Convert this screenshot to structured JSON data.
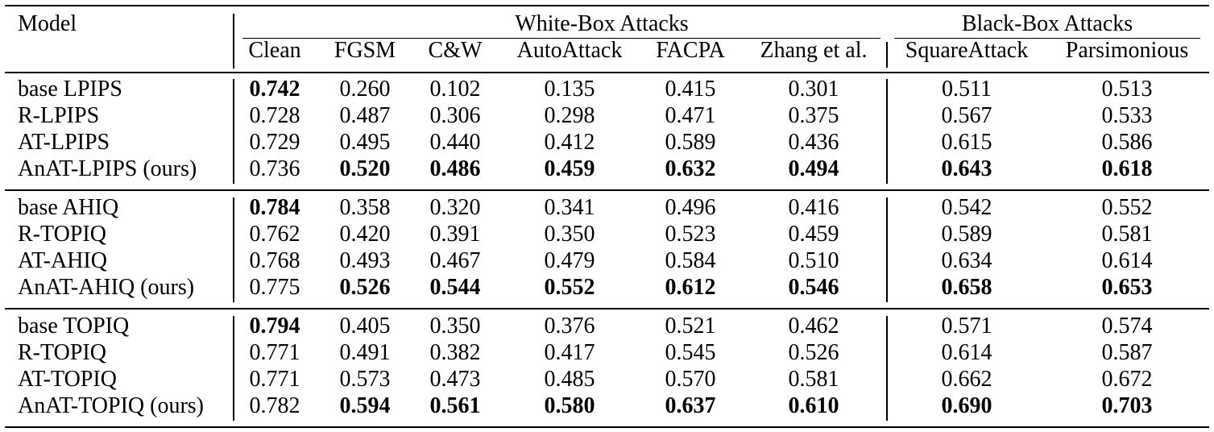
{
  "header": {
    "model_label": "Model",
    "whitebox_label": "White-Box Attacks",
    "blackbox_label": "Black-Box Attacks",
    "columns": [
      "Clean",
      "FGSM",
      "C&W",
      "AutoAttack",
      "FACPA",
      "Zhang et al.",
      "SquareAttack",
      "Parsimonious"
    ]
  },
  "groups": [
    {
      "rows": [
        {
          "model": "base LPIPS",
          "values": [
            "0.742",
            "0.260",
            "0.102",
            "0.135",
            "0.415",
            "0.301",
            "0.511",
            "0.513"
          ],
          "bold": [
            true,
            false,
            false,
            false,
            false,
            false,
            false,
            false
          ]
        },
        {
          "model": "R-LPIPS",
          "values": [
            "0.728",
            "0.487",
            "0.306",
            "0.298",
            "0.471",
            "0.375",
            "0.567",
            "0.533"
          ],
          "bold": [
            false,
            false,
            false,
            false,
            false,
            false,
            false,
            false
          ]
        },
        {
          "model": "AT-LPIPS",
          "values": [
            "0.729",
            "0.495",
            "0.440",
            "0.412",
            "0.589",
            "0.436",
            "0.615",
            "0.586"
          ],
          "bold": [
            false,
            false,
            false,
            false,
            false,
            false,
            false,
            false
          ]
        },
        {
          "model": "AnAT-LPIPS (ours)",
          "values": [
            "0.736",
            "0.520",
            "0.486",
            "0.459",
            "0.632",
            "0.494",
            "0.643",
            "0.618"
          ],
          "bold": [
            false,
            true,
            true,
            true,
            true,
            true,
            true,
            true
          ]
        }
      ]
    },
    {
      "rows": [
        {
          "model": "base AHIQ",
          "values": [
            "0.784",
            "0.358",
            "0.320",
            "0.341",
            "0.496",
            "0.416",
            "0.542",
            "0.552"
          ],
          "bold": [
            true,
            false,
            false,
            false,
            false,
            false,
            false,
            false
          ]
        },
        {
          "model": "R-TOPIQ",
          "values": [
            "0.762",
            "0.420",
            "0.391",
            "0.350",
            "0.523",
            "0.459",
            "0.589",
            "0.581"
          ],
          "bold": [
            false,
            false,
            false,
            false,
            false,
            false,
            false,
            false
          ]
        },
        {
          "model": "AT-AHIQ",
          "values": [
            "0.768",
            "0.493",
            "0.467",
            "0.479",
            "0.584",
            "0.510",
            "0.634",
            "0.614"
          ],
          "bold": [
            false,
            false,
            false,
            false,
            false,
            false,
            false,
            false
          ]
        },
        {
          "model": "AnAT-AHIQ (ours)",
          "values": [
            "0.775",
            "0.526",
            "0.544",
            "0.552",
            "0.612",
            "0.546",
            "0.658",
            "0.653"
          ],
          "bold": [
            false,
            true,
            true,
            true,
            true,
            true,
            true,
            true
          ]
        }
      ]
    },
    {
      "rows": [
        {
          "model": "base TOPIQ",
          "values": [
            "0.794",
            "0.405",
            "0.350",
            "0.376",
            "0.521",
            "0.462",
            "0.571",
            "0.574"
          ],
          "bold": [
            true,
            false,
            false,
            false,
            false,
            false,
            false,
            false
          ]
        },
        {
          "model": "R-TOPIQ",
          "values": [
            "0.771",
            "0.491",
            "0.382",
            "0.417",
            "0.545",
            "0.526",
            "0.614",
            "0.587"
          ],
          "bold": [
            false,
            false,
            false,
            false,
            false,
            false,
            false,
            false
          ]
        },
        {
          "model": "AT-TOPIQ",
          "values": [
            "0.771",
            "0.573",
            "0.473",
            "0.485",
            "0.570",
            "0.581",
            "0.662",
            "0.672"
          ],
          "bold": [
            false,
            false,
            false,
            false,
            false,
            false,
            false,
            false
          ]
        },
        {
          "model": "AnAT-TOPIQ (ours)",
          "values": [
            "0.782",
            "0.594",
            "0.561",
            "0.580",
            "0.637",
            "0.610",
            "0.690",
            "0.703"
          ],
          "bold": [
            false,
            true,
            true,
            true,
            true,
            true,
            true,
            true
          ]
        }
      ]
    }
  ]
}
